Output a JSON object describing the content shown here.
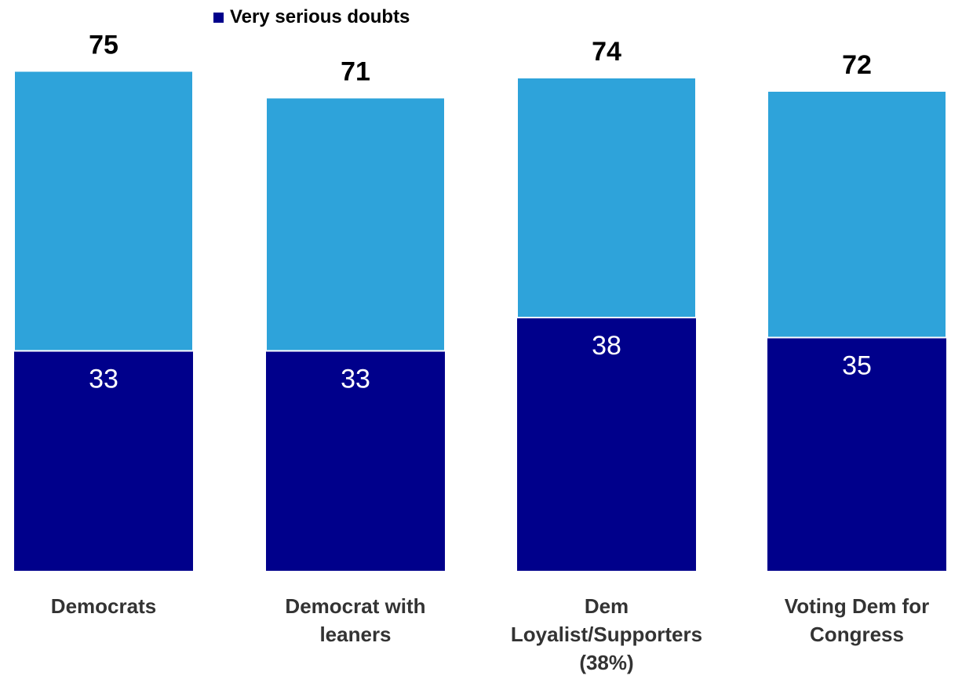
{
  "chart_data": {
    "type": "bar",
    "stacked": true,
    "categories": [
      [
        "Democrats"
      ],
      [
        "Democrat with",
        "leaners"
      ],
      [
        "Dem",
        "Loyalist/Supporters",
        "(38%)"
      ],
      [
        "Voting Dem for",
        "Congress"
      ]
    ],
    "series": [
      {
        "name": "Very serious doubts",
        "values": [
          33,
          33,
          38,
          35
        ],
        "color": "#00008B"
      },
      {
        "name": "",
        "values": [
          42,
          38,
          36,
          37
        ],
        "color": "#2EA3DA"
      }
    ],
    "totals": [
      75,
      71,
      74,
      72
    ],
    "ylim": [
      0,
      80
    ],
    "legend": {
      "placement": "top",
      "label": "Very serious doubts"
    },
    "grid": false,
    "title": "",
    "xlabel": "",
    "ylabel": ""
  }
}
